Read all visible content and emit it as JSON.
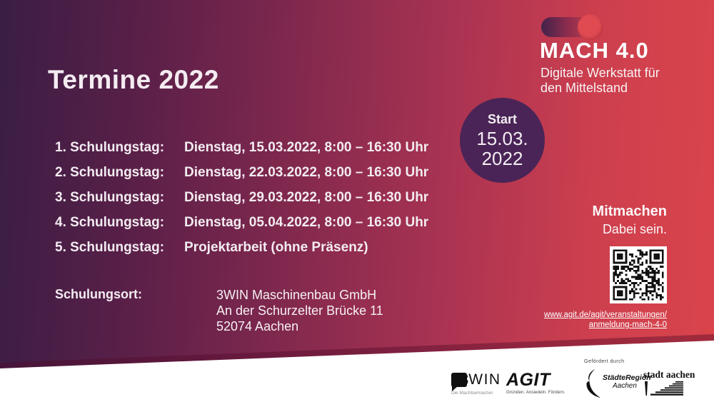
{
  "title": "Termine 2022",
  "schedule": {
    "rows": [
      {
        "label": "1. Schulungstag:",
        "value": "Dienstag, 15.03.2022, 8:00 – 16:30 Uhr"
      },
      {
        "label": "2. Schulungstag:",
        "value": "Dienstag, 22.03.2022, 8:00 – 16:30 Uhr"
      },
      {
        "label": "3. Schulungstag:",
        "value": "Dienstag, 29.03.2022, 8:00 – 16:30 Uhr"
      },
      {
        "label": "4. Schulungstag:",
        "value": "Dienstag, 05.04.2022, 8:00 – 16:30 Uhr"
      },
      {
        "label": "5. Schulungstag:",
        "value": "Projektarbeit (ohne Präsenz)"
      }
    ]
  },
  "location": {
    "label": "Schulungsort:",
    "line1": "3WIN Maschinenbau GmbH",
    "line2": "An der Schurzelter Brücke 11",
    "line3": "52074 Aachen"
  },
  "brand": {
    "name": "MACH 4.0",
    "tagline1": "Digitale Werkstatt für",
    "tagline2": "den Mittelstand",
    "toggle_icon": "toggle-switch-icon"
  },
  "start_badge": {
    "label": "Start",
    "date_line1": "15.03.",
    "date_line2": "2022"
  },
  "cta": {
    "heading": "Mitmachen",
    "subheading": "Dabei sein.",
    "qr_icon": "qr-code",
    "link_line1": "www.agit.de/agit/veranstaltungen/",
    "link_line2": "anmeldung-mach-4-0"
  },
  "footer": {
    "funded_by": "Gefördert durch",
    "logo_3win": {
      "prefix": "3",
      "rest": "WIN",
      "sub": "Die Machbarmacher"
    },
    "logo_agit": {
      "text": "AGIT",
      "sub": "Gründen. Ansiedeln. Fördern."
    },
    "logo_staedteregion": {
      "line1": "StädteRegion",
      "line2": "Aachen"
    },
    "logo_stadtaachen": {
      "text": "stadt aachen"
    }
  },
  "colors": {
    "bg_dark_purple": "#3a1e44",
    "bg_red": "#da444b",
    "start_circle": "#4a2457",
    "footer_band": "#ffffff",
    "text": "#f3ecf1"
  }
}
